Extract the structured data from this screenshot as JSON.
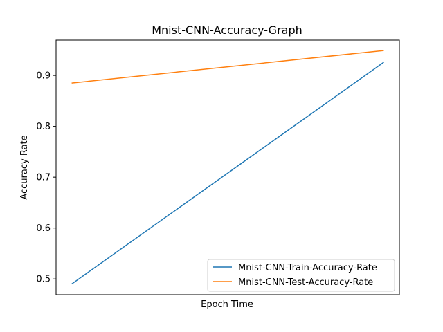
{
  "chart_data": {
    "type": "line",
    "title": "Mnist-CNN-Accuracy-Graph",
    "xlabel": "Epoch Time",
    "ylabel": "Accuracy Rate",
    "x": [
      0,
      1
    ],
    "xlim": [
      -0.05,
      1.05
    ],
    "ylim": [
      0.469,
      0.9695
    ],
    "yticks": [
      0.5,
      0.6,
      0.7,
      0.8,
      0.9
    ],
    "ytick_labels": [
      "0.5",
      "0.6",
      "0.7",
      "0.8",
      "0.9"
    ],
    "grid": false,
    "legend_position": "bottom-right",
    "series": [
      {
        "name": "Mnist-CNN-Train-Accuracy-Rate",
        "color": "#1f77b4",
        "values": [
          0.49,
          0.926
        ]
      },
      {
        "name": "Mnist-CNN-Test-Accuracy-Rate",
        "color": "#ff7f0e",
        "values": [
          0.885,
          0.949
        ]
      }
    ]
  }
}
